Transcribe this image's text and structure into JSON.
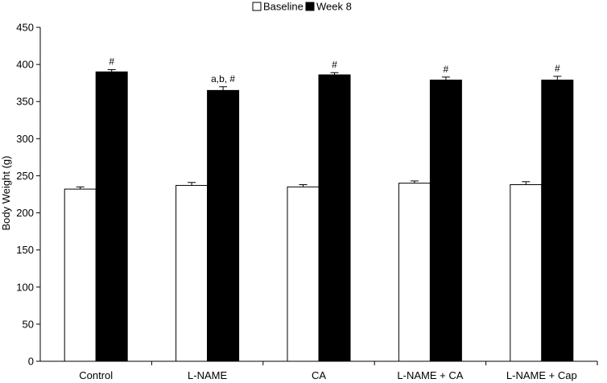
{
  "chart_data": {
    "type": "bar",
    "title": "",
    "xlabel": "",
    "ylabel": "Body Weight (g)",
    "ylim": [
      0,
      450
    ],
    "yticks": [
      0,
      50,
      100,
      150,
      200,
      250,
      300,
      350,
      400,
      450
    ],
    "categories": [
      "Control",
      "L-NAME",
      "CA",
      "L-NAME + CA",
      "L-NAME + Cap"
    ],
    "series": [
      {
        "name": "Baseline",
        "color": "#ffffff",
        "values": [
          232,
          237,
          235,
          240,
          238
        ],
        "errors": [
          3,
          4,
          3,
          3,
          4
        ]
      },
      {
        "name": "Week 8",
        "color": "#000000",
        "values": [
          390,
          365,
          386,
          379,
          379
        ],
        "errors": [
          3,
          5,
          3,
          4,
          5
        ]
      }
    ],
    "annotations": [
      "#",
      "a,b, #",
      "#",
      "#",
      "#"
    ],
    "legend_position": "top-center",
    "grid": false
  }
}
